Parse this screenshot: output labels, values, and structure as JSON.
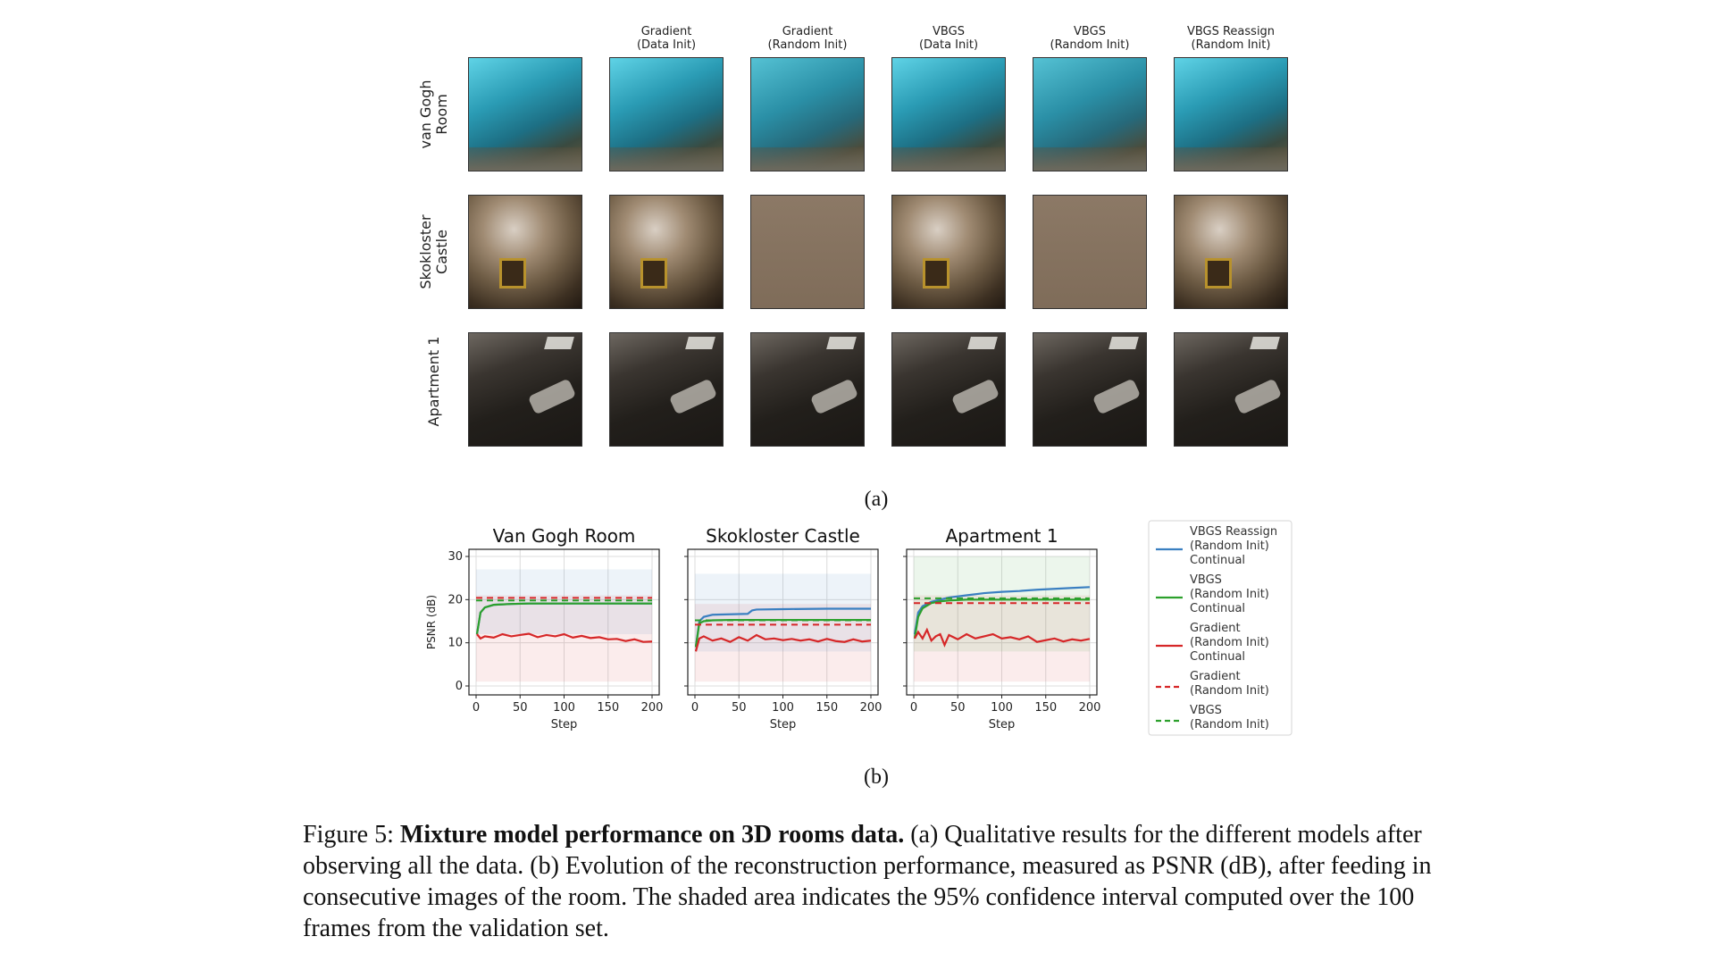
{
  "figure_a": {
    "columns": [
      "",
      "Gradient\n(Data Init)",
      "Gradient\n(Random Init)",
      "VBGS\n(Data Init)",
      "VBGS\n(Random Init)",
      "VBGS Reassign\n(Random Init)"
    ],
    "rows": [
      "van Gogh\nRoom",
      "Skokloster\nCastle",
      "Apartment 1"
    ],
    "label": "(a)"
  },
  "figure_b_label": "(b)",
  "caption": {
    "prefix": "Figure 5: ",
    "bold": "Mixture model performance on 3D rooms data.",
    "text": " (a) Qualitative results for the different models after observing all the data. (b) Evolution of the reconstruction performance, measured as PSNR (dB), after feeding in consecutive images of the room. The shaded area indicates the 95% confidence interval computed over the 100 frames from the validation set."
  },
  "colors": {
    "blue": "#3a7fc1",
    "green": "#2ca02c",
    "red": "#d62728"
  },
  "chart_data": [
    {
      "type": "line",
      "title": "Van Gogh Room",
      "xlabel": "Step",
      "ylabel": "PSNR (dB)",
      "xlim": [
        0,
        200
      ],
      "ylim": [
        0,
        30
      ],
      "xticks": [
        0,
        50,
        100,
        150,
        200
      ],
      "yticks": [
        0,
        10,
        20,
        30
      ],
      "series": [
        {
          "name": "VBGS Reassign (Random Init) Continual",
          "style": "solid",
          "color": "#3a7fc1",
          "x": [
            1,
            5,
            10,
            20,
            40,
            60,
            100,
            150,
            200
          ],
          "y": [
            12,
            17,
            18.2,
            18.8,
            19,
            19.1,
            19.1,
            19.1,
            19.1
          ]
        },
        {
          "name": "VBGS (Random Init) Continual",
          "style": "solid",
          "color": "#2ca02c",
          "x": [
            1,
            5,
            10,
            20,
            40,
            60,
            100,
            150,
            200
          ],
          "y": [
            12,
            17,
            18.2,
            18.8,
            19,
            19.1,
            19.1,
            19.1,
            19.1
          ]
        },
        {
          "name": "Gradient (Random Init) Continual",
          "style": "solid",
          "color": "#d62728",
          "x": [
            1,
            5,
            10,
            20,
            30,
            40,
            50,
            60,
            70,
            80,
            90,
            100,
            110,
            120,
            130,
            140,
            150,
            160,
            170,
            180,
            190,
            200
          ],
          "y": [
            12,
            11,
            11.5,
            11.2,
            12,
            11.5,
            11.8,
            12.1,
            11.3,
            11.8,
            11.5,
            12,
            11.2,
            11.6,
            11.1,
            11.3,
            10.8,
            10.9,
            10.4,
            10.8,
            10.2,
            10.3
          ]
        },
        {
          "name": "Gradient (Random Init)",
          "style": "dashed",
          "color": "#d62728",
          "x": [
            0,
            200
          ],
          "y": [
            20.4,
            20.4
          ]
        },
        {
          "name": "VBGS (Random Init)",
          "style": "dashed",
          "color": "#2ca02c",
          "x": [
            0,
            200
          ],
          "y": [
            19.8,
            19.8
          ]
        }
      ],
      "bands": [
        {
          "color": "#d62728",
          "x": [
            0,
            200
          ],
          "low": [
            1,
            1
          ],
          "high": [
            21,
            21
          ]
        },
        {
          "color": "#3a7fc1",
          "x": [
            0,
            200
          ],
          "low": [
            12,
            12
          ],
          "high": [
            27,
            27
          ]
        }
      ]
    },
    {
      "type": "line",
      "title": "Skokloster Castle",
      "xlabel": "Step",
      "xlim": [
        0,
        200
      ],
      "ylim": [
        0,
        30
      ],
      "xticks": [
        0,
        50,
        100,
        150,
        200
      ],
      "series": [
        {
          "name": "VBGS Reassign (Random Init) Continual",
          "style": "solid",
          "color": "#3a7fc1",
          "x": [
            1,
            5,
            10,
            20,
            40,
            60,
            65,
            70,
            100,
            150,
            200
          ],
          "y": [
            9,
            15,
            16,
            16.5,
            16.6,
            16.7,
            17.5,
            17.7,
            17.8,
            17.9,
            17.9
          ]
        },
        {
          "name": "VBGS (Random Init) Continual",
          "style": "solid",
          "color": "#2ca02c",
          "x": [
            1,
            5,
            10,
            20,
            40,
            100,
            200
          ],
          "y": [
            9,
            14.5,
            15,
            15.2,
            15.3,
            15.3,
            15.3
          ]
        },
        {
          "name": "Gradient (Random Init) Continual",
          "style": "solid",
          "color": "#d62728",
          "x": [
            1,
            5,
            10,
            20,
            30,
            40,
            50,
            60,
            70,
            80,
            90,
            100,
            110,
            120,
            130,
            140,
            150,
            160,
            170,
            180,
            190,
            200
          ],
          "y": [
            8,
            11,
            11.5,
            10.5,
            11,
            10.2,
            11.3,
            10.5,
            11.8,
            10.8,
            11,
            10.6,
            10.9,
            10.5,
            10.8,
            10.3,
            10.9,
            10.4,
            10.2,
            10.8,
            10.3,
            10.5
          ]
        },
        {
          "name": "Gradient (Random Init)",
          "style": "dashed",
          "color": "#d62728",
          "x": [
            0,
            200
          ],
          "y": [
            14.2,
            14.2
          ]
        },
        {
          "name": "VBGS (Random Init)",
          "style": "dashed",
          "color": "#2ca02c",
          "x": [
            0,
            200
          ],
          "y": [
            15.2,
            15.2
          ]
        }
      ],
      "bands": [
        {
          "color": "#d62728",
          "x": [
            0,
            200
          ],
          "low": [
            1,
            1
          ],
          "high": [
            19,
            19
          ]
        },
        {
          "color": "#3a7fc1",
          "x": [
            0,
            200
          ],
          "low": [
            8,
            8
          ],
          "high": [
            26,
            26
          ]
        }
      ]
    },
    {
      "type": "line",
      "title": "Apartment 1",
      "xlabel": "Step",
      "xlim": [
        0,
        200
      ],
      "ylim": [
        0,
        30
      ],
      "xticks": [
        0,
        50,
        100,
        150,
        200
      ],
      "series": [
        {
          "name": "VBGS Reassign (Random Init) Continual",
          "style": "solid",
          "color": "#3a7fc1",
          "x": [
            1,
            5,
            10,
            20,
            30,
            40,
            60,
            80,
            100,
            120,
            140,
            160,
            180,
            200
          ],
          "y": [
            12,
            17,
            18.5,
            19.5,
            20,
            20.5,
            21,
            21.5,
            21.8,
            22,
            22.3,
            22.5,
            22.7,
            22.9
          ]
        },
        {
          "name": "VBGS (Random Init) Continual",
          "style": "solid",
          "color": "#2ca02c",
          "x": [
            1,
            5,
            10,
            20,
            30,
            40,
            60,
            100,
            150,
            200
          ],
          "y": [
            11,
            16,
            18,
            19.2,
            19.6,
            19.8,
            20,
            20,
            20,
            20
          ]
        },
        {
          "name": "Gradient (Random Init) Continual",
          "style": "solid",
          "color": "#d62728",
          "x": [
            1,
            5,
            10,
            15,
            20,
            25,
            30,
            35,
            40,
            50,
            60,
            70,
            80,
            90,
            100,
            110,
            120,
            130,
            140,
            150,
            160,
            170,
            180,
            190,
            200
          ],
          "y": [
            11,
            12.5,
            11,
            13,
            10.5,
            11.5,
            12,
            9.5,
            11.8,
            10.8,
            12,
            11,
            11.5,
            12,
            11,
            11.3,
            10.8,
            11.5,
            10.2,
            10.6,
            11,
            10.3,
            10.8,
            10.5,
            10.9
          ]
        },
        {
          "name": "Gradient (Random Init)",
          "style": "dashed",
          "color": "#d62728",
          "x": [
            0,
            200
          ],
          "y": [
            19.2,
            19.2
          ]
        },
        {
          "name": "VBGS (Random Init)",
          "style": "dashed",
          "color": "#2ca02c",
          "x": [
            0,
            200
          ],
          "y": [
            20.3,
            20.3
          ]
        }
      ],
      "bands": [
        {
          "color": "#d62728",
          "x": [
            0,
            200
          ],
          "low": [
            1,
            1
          ],
          "high": [
            21,
            21
          ]
        },
        {
          "color": "#2ca02c",
          "x": [
            0,
            200
          ],
          "low": [
            8,
            8
          ],
          "high": [
            30,
            30
          ]
        }
      ]
    }
  ],
  "legend": [
    {
      "label": "VBGS Reassign\n(Random Init)\nContinual",
      "color": "#3a7fc1",
      "style": "solid"
    },
    {
      "label": "VBGS\n(Random Init)\nContinual",
      "color": "#2ca02c",
      "style": "solid"
    },
    {
      "label": "Gradient\n(Random Init)\nContinual",
      "color": "#d62728",
      "style": "solid"
    },
    {
      "label": "Gradient\n(Random Init)",
      "color": "#d62728",
      "style": "dashed"
    },
    {
      "label": "VBGS\n(Random Init)",
      "color": "#2ca02c",
      "style": "dashed"
    }
  ]
}
